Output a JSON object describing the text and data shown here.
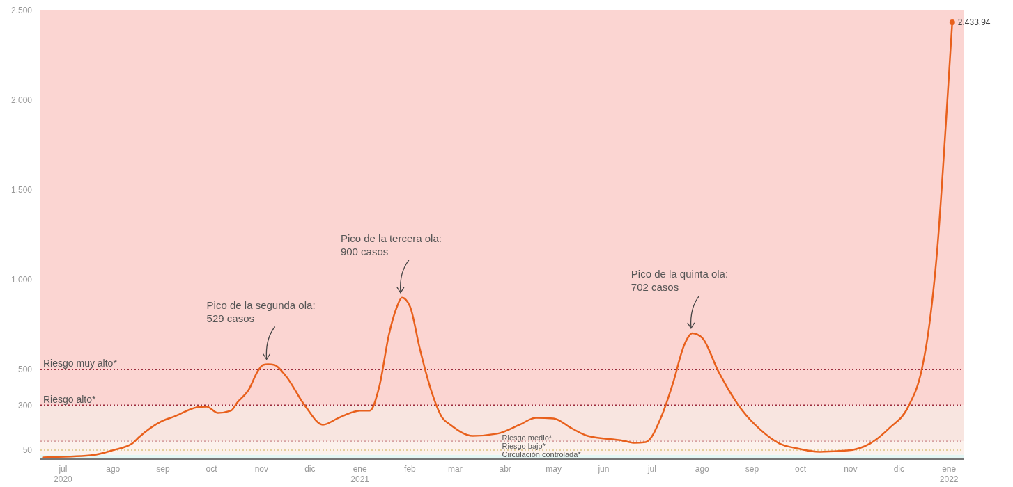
{
  "chart_data": {
    "type": "line",
    "grid": false,
    "marker": "none",
    "xlim": [
      "2020-06-17",
      "2022-01-10"
    ],
    "ylim": [
      0,
      2500
    ],
    "xticks": [
      {
        "value": "2020-07-01",
        "label": "jul\n2020"
      },
      {
        "value": "2020-08-01",
        "label": "ago"
      },
      {
        "value": "2020-09-01",
        "label": "sep"
      },
      {
        "value": "2020-10-01",
        "label": "oct"
      },
      {
        "value": "2020-11-01",
        "label": "nov"
      },
      {
        "value": "2020-12-01",
        "label": "dic"
      },
      {
        "value": "2021-01-01",
        "label": "ene\n2021"
      },
      {
        "value": "2021-02-01",
        "label": "feb"
      },
      {
        "value": "2021-03-01",
        "label": "mar"
      },
      {
        "value": "2021-04-01",
        "label": "abr"
      },
      {
        "value": "2021-05-01",
        "label": "may"
      },
      {
        "value": "2021-06-01",
        "label": "jun"
      },
      {
        "value": "2021-07-01",
        "label": "jul"
      },
      {
        "value": "2021-08-01",
        "label": "ago"
      },
      {
        "value": "2021-09-01",
        "label": "sep"
      },
      {
        "value": "2021-10-01",
        "label": "oct"
      },
      {
        "value": "2021-11-01",
        "label": "nov"
      },
      {
        "value": "2021-12-01",
        "label": "dic"
      },
      {
        "value": "2022-01-01",
        "label": "ene\n2022"
      }
    ],
    "yticks": [
      50,
      300,
      500,
      {
        "value": 1000,
        "label": "1.000"
      },
      {
        "value": 1500,
        "label": "1.500"
      },
      {
        "value": 2000,
        "label": "2.000"
      },
      {
        "value": 2500,
        "label": "2.500"
      }
    ],
    "bands": [
      {
        "axis": "y",
        "from": 0,
        "to": 25,
        "label": "Circulación controlada*",
        "color": "#e4f6f4"
      },
      {
        "axis": "y",
        "from": 25,
        "to": 100,
        "color": "#fcf1ec"
      },
      {
        "axis": "y",
        "from": 100,
        "to": 300,
        "color": "#f8e5e0"
      },
      {
        "axis": "y",
        "from": 300,
        "to": 2500,
        "color": "#fbd5d2"
      }
    ],
    "ref_lines": [
      {
        "axis": "y",
        "value": 500,
        "label": "Riesgo muy alto*",
        "color": "#9b2c3c",
        "line_style": "dotted"
      },
      {
        "axis": "y",
        "value": 300,
        "label": "Riesgo alto*",
        "color": "#9b2c3c",
        "line_style": "dotted"
      },
      {
        "axis": "y",
        "value": 100,
        "label": "Riesgo medio*",
        "color": "#d7a3a3",
        "line_style": "dotted"
      },
      {
        "axis": "y",
        "value": 50,
        "label": "Riesgo bajo*",
        "color": "#e3cf9c",
        "line_style": "dotted"
      }
    ],
    "annotations": [
      {
        "text": "Pico de la segunda ola:\n529 casos",
        "x": "2020-11-05",
        "y": 529
      },
      {
        "text": "Pico de la tercera ola:\n900 casos",
        "x": "2021-01-27",
        "y": 900
      },
      {
        "text": "Pico de la quinta ola:\n702 casos",
        "x": "2021-07-26",
        "y": 702
      }
    ],
    "series": [
      {
        "color": "#e8601c",
        "line_style": "solid",
        "x": [
          "2020-06-19",
          "2020-07-18",
          "2020-08-01",
          "2020-08-13",
          "2020-08-17",
          "2020-08-31",
          "2020-09-08",
          "2020-09-22",
          "2020-09-28",
          "2020-10-05",
          "2020-10-13",
          "2020-10-17",
          "2020-10-24",
          "2020-10-30",
          "2020-11-02",
          "2020-11-05",
          "2020-11-09",
          "2020-11-16",
          "2020-11-28",
          "2020-12-09",
          "2020-12-19",
          "2021-01-01",
          "2021-01-07",
          "2021-01-13",
          "2021-01-19",
          "2021-01-24",
          "2021-01-27",
          "2021-02-01",
          "2021-02-07",
          "2021-02-14",
          "2021-02-21",
          "2021-02-26",
          "2021-03-12",
          "2021-03-27",
          "2021-04-10",
          "2021-04-20",
          "2021-05-01",
          "2021-05-12",
          "2021-05-22",
          "2021-06-13",
          "2021-06-20",
          "2021-06-27",
          "2021-07-07",
          "2021-07-14",
          "2021-07-21",
          "2021-07-26",
          "2021-08-01",
          "2021-08-11",
          "2021-08-26",
          "2021-09-06",
          "2021-09-18",
          "2021-09-29",
          "2021-10-13",
          "2021-10-30",
          "2021-11-13",
          "2021-11-25",
          "2021-12-07",
          "2021-12-15",
          "2021-12-19",
          "2021-12-25",
          "2021-12-30",
          "2022-01-03"
        ],
        "values": [
          10,
          21,
          50,
          88,
          122,
          211,
          238,
          289,
          293,
          258,
          270,
          316,
          386,
          495,
          525,
          529,
          525,
          464,
          297,
          192,
          231,
          270,
          270,
          405,
          696,
          851,
          900,
          851,
          619,
          386,
          231,
          192,
          130,
          142,
          192,
          231,
          227,
          173,
          130,
          103,
          91,
          95,
          242,
          425,
          638,
          702,
          677,
          491,
          270,
          165,
          87,
          60,
          41,
          48,
          87,
          173,
          297,
          495,
          696,
          1200,
          1860,
          2433.94
        ],
        "value_labels": [
          null,
          null,
          null,
          null,
          null,
          null,
          null,
          null,
          null,
          null,
          null,
          null,
          null,
          null,
          null,
          null,
          null,
          null,
          null,
          null,
          null,
          null,
          null,
          null,
          null,
          null,
          null,
          null,
          null,
          null,
          null,
          null,
          null,
          null,
          null,
          null,
          null,
          null,
          null,
          null,
          null,
          null,
          null,
          null,
          null,
          null,
          null,
          null,
          null,
          null,
          null,
          null,
          null,
          null,
          null,
          null,
          null,
          null,
          null,
          null,
          null,
          "2.433,94"
        ]
      }
    ]
  }
}
